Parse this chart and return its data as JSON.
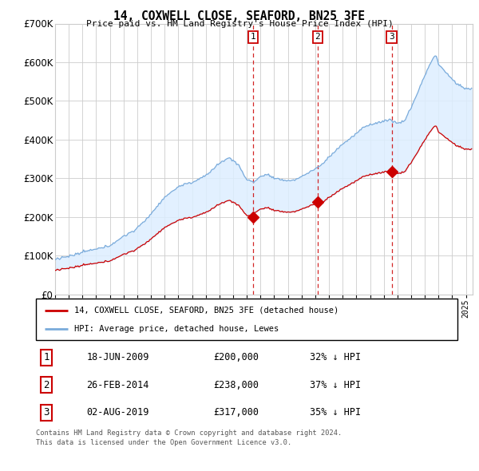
{
  "title": "14, COXWELL CLOSE, SEAFORD, BN25 3FE",
  "subtitle": "Price paid vs. HM Land Registry's House Price Index (HPI)",
  "ylim": [
    0,
    700000
  ],
  "yticks": [
    0,
    100000,
    200000,
    300000,
    400000,
    500000,
    600000,
    700000
  ],
  "ytick_labels": [
    "£0",
    "£100K",
    "£200K",
    "£300K",
    "£400K",
    "£500K",
    "£600K",
    "£700K"
  ],
  "xlim_start": 1995.0,
  "xlim_end": 2025.5,
  "background_color": "#ffffff",
  "grid_color": "#cccccc",
  "hpi_color": "#7aabdb",
  "price_color": "#cc0000",
  "shade_color": "#ddeeff",
  "transactions": [
    {
      "num": 1,
      "date": "18-JUN-2009",
      "year": 2009.46,
      "price": 200000,
      "label": "32% ↓ HPI"
    },
    {
      "num": 2,
      "date": "26-FEB-2014",
      "year": 2014.16,
      "price": 238000,
      "label": "37% ↓ HPI"
    },
    {
      "num": 3,
      "date": "02-AUG-2019",
      "year": 2019.58,
      "price": 317000,
      "label": "35% ↓ HPI"
    }
  ],
  "legend_label_red": "14, COXWELL CLOSE, SEAFORD, BN25 3FE (detached house)",
  "legend_label_blue": "HPI: Average price, detached house, Lewes",
  "footer_line1": "Contains HM Land Registry data © Crown copyright and database right 2024.",
  "footer_line2": "This data is licensed under the Open Government Licence v3.0."
}
